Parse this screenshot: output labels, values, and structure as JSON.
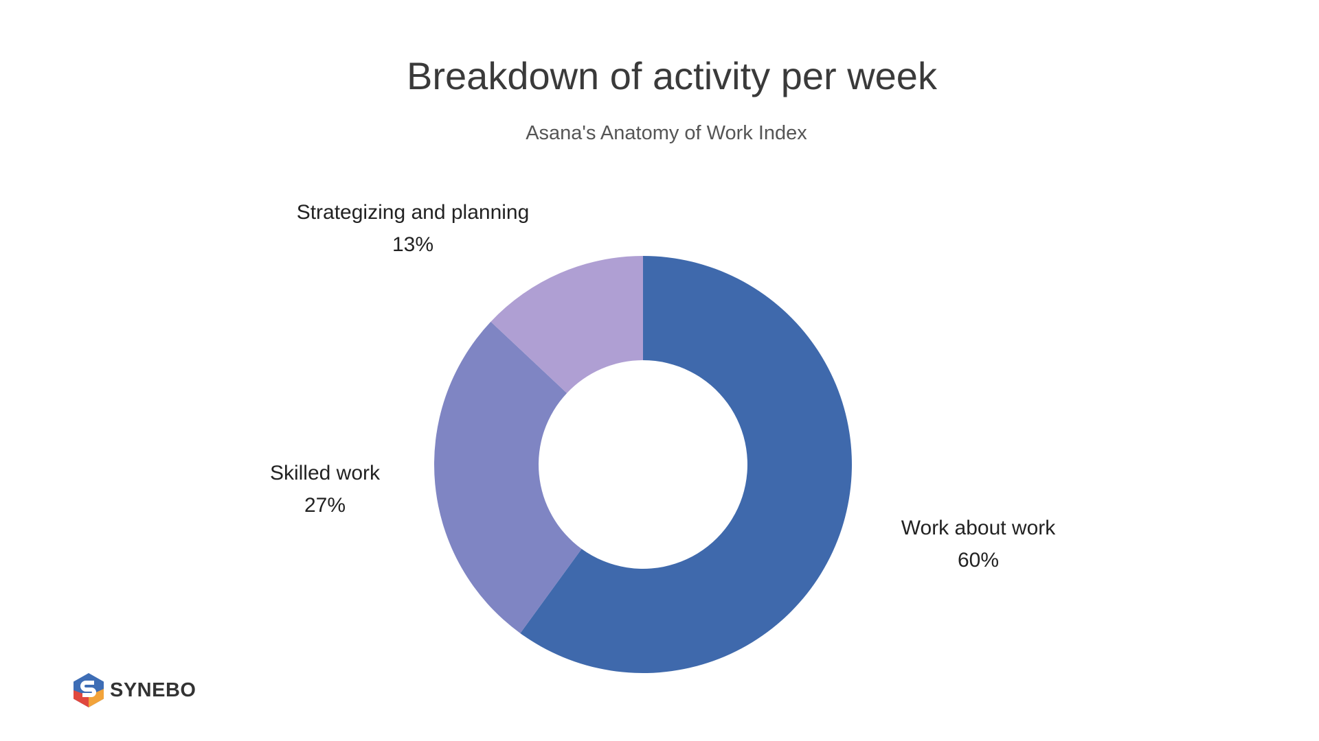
{
  "chart_data": {
    "type": "pie",
    "variant": "donut",
    "title": "Breakdown of activity per week",
    "subtitle": "Asana's Anatomy of Work Index",
    "slices": [
      {
        "label": "Work about work",
        "value": 60,
        "display": "60%",
        "color": "#3F69AC"
      },
      {
        "label": "Skilled work",
        "value": 27,
        "display": "27%",
        "color": "#7F85C3"
      },
      {
        "label": "Strategizing and planning",
        "value": 13,
        "display": "13%",
        "color": "#AF9FD3"
      }
    ],
    "start": "top",
    "direction": "clockwise",
    "legend": "none"
  },
  "branding": {
    "logo_text": "SYNEBO"
  }
}
